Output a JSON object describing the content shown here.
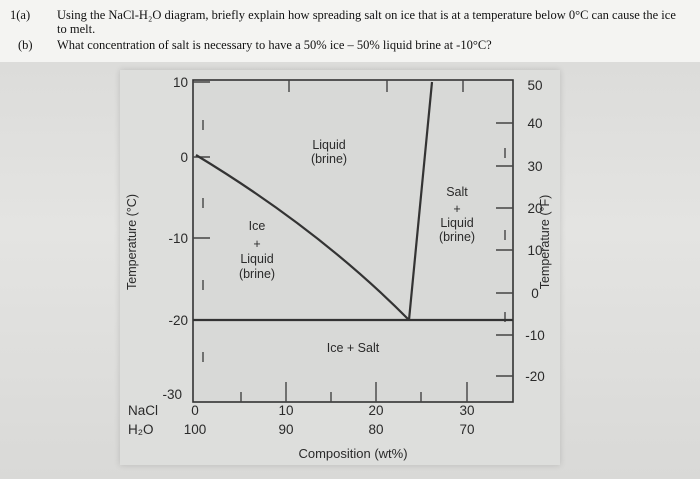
{
  "questions": [
    {
      "number": "1(a)",
      "text": "Using the NaCl-H₂O diagram, briefly explain how spreading salt on ice that is at a temperature below 0°C can cause the ice to melt."
    },
    {
      "number": "(b)",
      "text": "What concentration of salt is necessary to have a 50% ice – 50% liquid brine at -10°C?"
    }
  ],
  "diagram": {
    "left_axis_label": "Temperature (°C)",
    "right_axis_label": "Temperature (°F)",
    "left_ticks": [
      "10",
      "0",
      "-10",
      "-20",
      "-30"
    ],
    "right_ticks": [
      "50",
      "40",
      "30",
      "20",
      "10",
      "0",
      "-10",
      "-20"
    ],
    "bottom_row_nacl_label": "NaCl",
    "bottom_row_h2o_label": "H₂O",
    "nacl_ticks": [
      "0",
      "10",
      "20",
      "30"
    ],
    "h2o_ticks": [
      "100",
      "90",
      "80",
      "70"
    ],
    "xlabel": "Composition (wt%)",
    "regions": {
      "liquid": [
        "Liquid",
        "(brine)"
      ],
      "ice_liquid": [
        "Ice",
        "+",
        "Liquid",
        "(brine)"
      ],
      "salt_liquid": [
        "Salt",
        "+",
        "Liquid",
        "(brine)"
      ],
      "ice_salt": "Ice + Salt"
    }
  }
}
